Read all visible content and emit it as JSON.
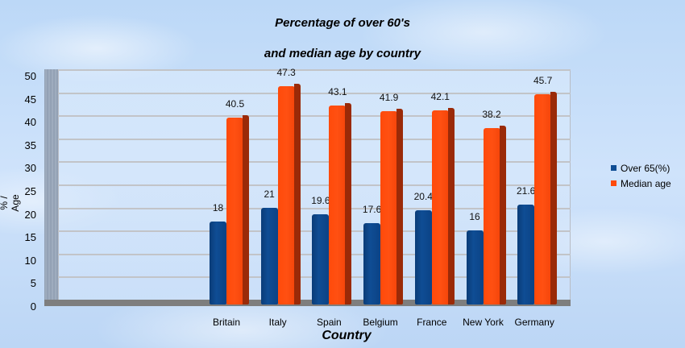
{
  "chart_data": {
    "type": "bar",
    "title": "Percentage of over 60's and median age by country",
    "title_lines": [
      "Percentage of over 60's",
      "and median age by country"
    ],
    "xlabel": "Country",
    "ylabel": "% / Age",
    "ylim": [
      0,
      50
    ],
    "yticks": [
      "0",
      "5",
      "10",
      "15",
      "20",
      "25",
      "30",
      "35",
      "40",
      "45",
      "50"
    ],
    "grid": true,
    "legend_position": "right",
    "categories": [
      "Britain",
      "Italy",
      "Spain",
      "Belgium",
      "France",
      "New York",
      "Germany"
    ],
    "series": [
      {
        "name": "Over 65(%)",
        "color": "#0f4d94",
        "values": [
          18,
          21,
          19.6,
          17.6,
          20.4,
          16,
          21.6
        ],
        "labels": [
          "18",
          "21",
          "19.6",
          "17.6",
          "20.4",
          "16",
          "21.6"
        ]
      },
      {
        "name": "Median age",
        "color": "#ff4a0a",
        "values": [
          40.5,
          47.3,
          43.1,
          41.9,
          42.1,
          38.2,
          45.7
        ],
        "labels": [
          "40.5",
          "47.3",
          "43.1",
          "41.9",
          "42.1",
          "38.2",
          "45.7"
        ]
      }
    ]
  }
}
